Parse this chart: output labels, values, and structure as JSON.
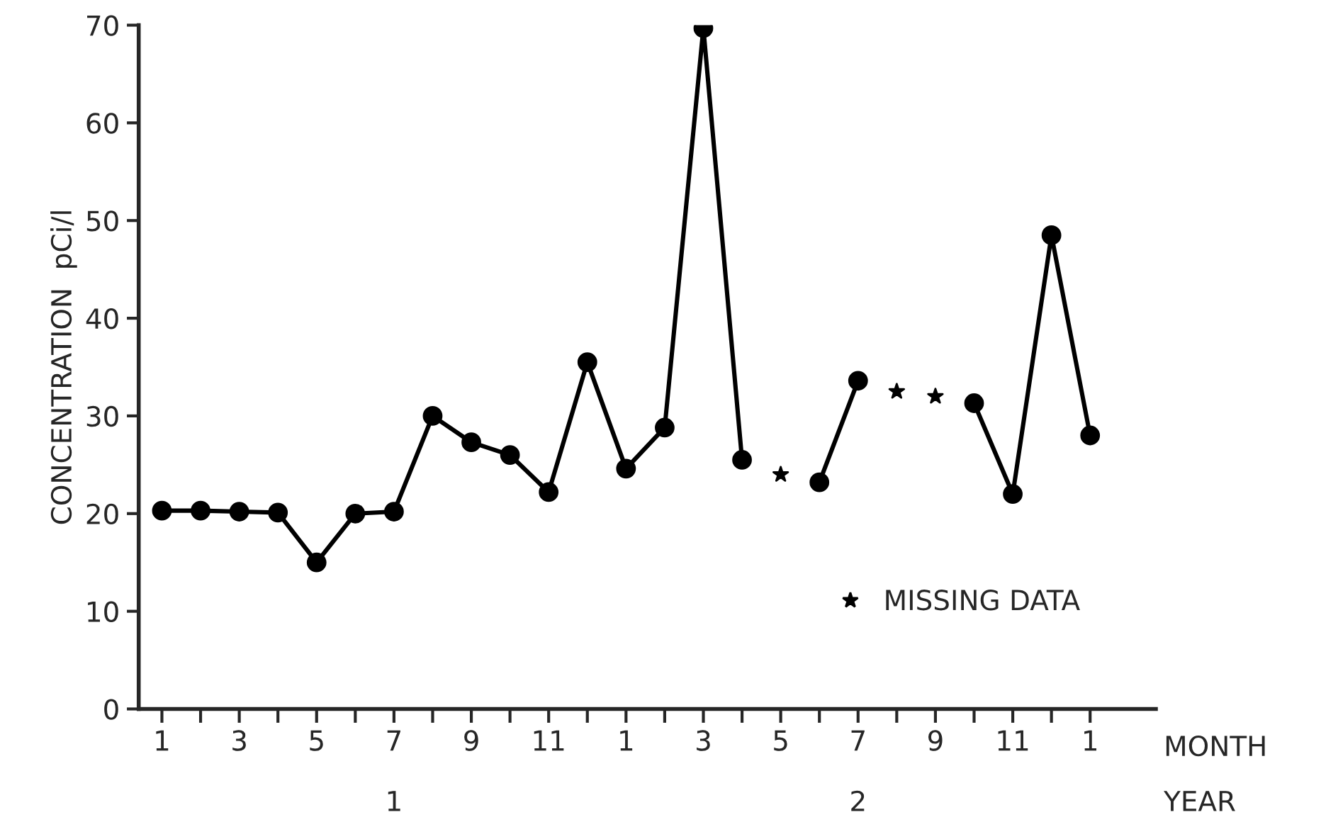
{
  "chart_data": {
    "type": "line",
    "xlabel": "MONTH",
    "ylabel": "CONCENTRATION  pCi/l",
    "categories": [
      "1",
      null,
      "3",
      null,
      "5",
      null,
      "7",
      null,
      "9",
      null,
      "11",
      null,
      "1",
      null,
      "3",
      null,
      "5",
      null,
      "7",
      null,
      "9",
      null,
      "11",
      null,
      "1"
    ],
    "series": [
      {
        "color": "#000000",
        "marker": "circle",
        "values": [
          20.3,
          20.3,
          20.2,
          20.1,
          15,
          20,
          20.2,
          30,
          27.3,
          26,
          22.2,
          35.5,
          24.6,
          28.8,
          69.7,
          25.5,
          null,
          23.2,
          33.6,
          null,
          null,
          31.3,
          22,
          48.5,
          28
        ]
      },
      {
        "type": "scatter",
        "name": "MISSING DATA",
        "color": "#000000",
        "marker": "star",
        "values": [
          null,
          null,
          null,
          null,
          null,
          null,
          null,
          null,
          null,
          null,
          null,
          null,
          null,
          null,
          null,
          null,
          24,
          null,
          null,
          32.5,
          32,
          null,
          null,
          null,
          null
        ]
      }
    ],
    "ylim": [
      0,
      70
    ],
    "yticks": [
      0,
      10,
      20,
      30,
      40,
      50,
      60,
      70
    ],
    "grid": false,
    "legend": "bottom right",
    "line_style": "solid",
    "annotations": [
      "1",
      "2",
      "YEAR"
    ]
  }
}
